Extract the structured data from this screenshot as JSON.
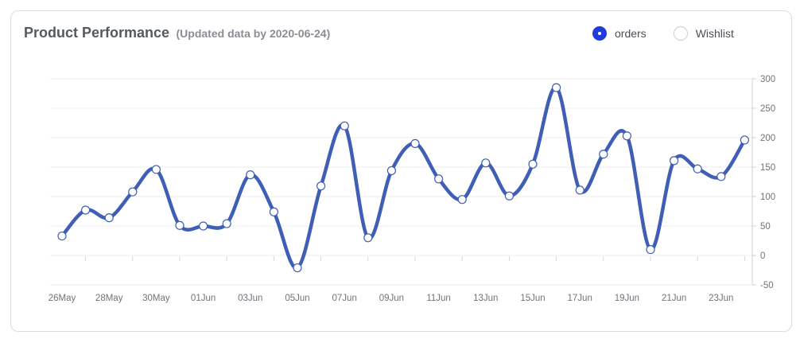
{
  "header": {
    "title": "Product Performance",
    "subtitle": "(Updated data by 2020-06-24)"
  },
  "legend": {
    "items": [
      {
        "label": "orders",
        "selected": true
      },
      {
        "label": "Wishlist",
        "selected": false
      }
    ]
  },
  "colors": {
    "line": "#3f5eb5",
    "accent": "#1f3bdb",
    "grid": "#ececec"
  },
  "chart_data": {
    "type": "line",
    "title": "Product Performance",
    "subtitle": "(Updated data by 2020-06-24)",
    "xlabel": "",
    "ylabel": "",
    "ylim": [
      -50,
      300
    ],
    "yticks": [
      -50,
      0,
      50,
      100,
      150,
      200,
      250,
      300
    ],
    "y_axis_position": "right",
    "grid": true,
    "legend_position": "top-right",
    "x": [
      "26May",
      "27May",
      "28May",
      "29May",
      "30May",
      "31May",
      "01Jun",
      "02Jun",
      "03Jun",
      "04Jun",
      "05Jun",
      "06Jun",
      "07Jun",
      "08Jun",
      "09Jun",
      "10Jun",
      "11Jun",
      "12Jun",
      "13Jun",
      "14Jun",
      "15Jun",
      "16Jun",
      "17Jun",
      "18Jun",
      "19Jun",
      "20Jun",
      "21Jun",
      "22Jun",
      "23Jun",
      "24Jun"
    ],
    "x_tick_labels": [
      "26May",
      "28May",
      "30May",
      "01Jun",
      "03Jun",
      "05Jun",
      "07Jun",
      "09Jun",
      "11Jun",
      "13Jun",
      "15Jun",
      "17Jun",
      "19Jun",
      "21Jun",
      "23Jun"
    ],
    "series": [
      {
        "name": "orders",
        "values": [
          33,
          77,
          64,
          108,
          146,
          51,
          50,
          54,
          137,
          74,
          -21,
          118,
          220,
          30,
          144,
          190,
          130,
          95,
          157,
          101,
          155,
          285,
          111,
          172,
          203,
          10,
          161,
          147,
          134,
          196
        ]
      }
    ]
  }
}
